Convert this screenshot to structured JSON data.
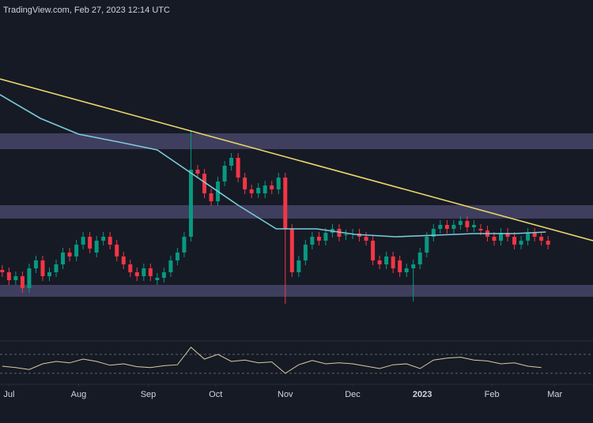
{
  "chart_data": {
    "type": "candlestick",
    "title": "TradingView.com, Feb 27, 2023 12:14 UTC",
    "x": [
      1,
      4,
      7,
      10,
      13,
      16,
      19,
      22,
      25,
      28,
      31,
      34,
      37,
      40,
      43,
      46,
      49,
      52,
      55,
      58,
      61,
      64,
      67,
      70,
      73,
      76,
      79,
      82,
      85,
      88,
      91,
      94,
      97,
      100,
      103,
      106,
      109,
      112,
      115,
      118,
      121,
      124,
      127,
      130,
      133,
      136,
      139,
      142,
      145,
      148,
      151,
      154,
      157,
      160,
      163,
      166,
      169,
      172,
      175,
      178,
      181,
      184,
      187,
      190,
      193,
      196,
      199,
      202,
      205,
      208,
      211,
      214,
      217,
      220,
      223,
      226,
      229,
      232,
      235,
      238,
      241,
      244
    ],
    "open": [
      88,
      85,
      75,
      80,
      65,
      90,
      100,
      80,
      85,
      95,
      110,
      105,
      120,
      130,
      110,
      125,
      130,
      120,
      105,
      95,
      85,
      80,
      90,
      75,
      78,
      85,
      100,
      110,
      130,
      215,
      210,
      185,
      175,
      200,
      220,
      230,
      205,
      190,
      185,
      185,
      195,
      190,
      205,
      140,
      85,
      100,
      120,
      130,
      125,
      135,
      140,
      132,
      133,
      134,
      130,
      125,
      100,
      95,
      105,
      100,
      85,
      90,
      95,
      110,
      130,
      140,
      145,
      140,
      145,
      150,
      142,
      140,
      138,
      130,
      125,
      135,
      130,
      120,
      125,
      135,
      130,
      125
    ],
    "high": [
      94,
      91,
      86,
      86,
      96,
      106,
      106,
      91,
      101,
      116,
      116,
      126,
      136,
      136,
      131,
      136,
      136,
      126,
      111,
      101,
      91,
      96,
      96,
      84,
      91,
      106,
      116,
      136,
      265,
      221,
      216,
      191,
      206,
      226,
      236,
      236,
      211,
      196,
      198,
      201,
      201,
      211,
      211,
      146,
      106,
      126,
      136,
      136,
      141,
      146,
      146,
      139,
      140,
      140,
      136,
      131,
      106,
      111,
      111,
      106,
      96,
      101,
      116,
      136,
      146,
      151,
      151,
      151,
      156,
      156,
      151,
      146,
      144,
      136,
      141,
      141,
      136,
      131,
      141,
      141,
      136,
      131
    ],
    "low": [
      79,
      69,
      69,
      59,
      59,
      84,
      74,
      74,
      79,
      89,
      99,
      99,
      114,
      109,
      104,
      119,
      114,
      99,
      89,
      79,
      74,
      74,
      74,
      69,
      72,
      79,
      94,
      104,
      124,
      204,
      179,
      169,
      169,
      194,
      214,
      199,
      184,
      179,
      179,
      179,
      184,
      184,
      45,
      79,
      79,
      94,
      114,
      119,
      119,
      129,
      124,
      126,
      127,
      124,
      119,
      94,
      89,
      89,
      84,
      79,
      79,
      48,
      89,
      104,
      124,
      134,
      134,
      134,
      139,
      136,
      136,
      132,
      124,
      119,
      119,
      124,
      114,
      114,
      119,
      124,
      119,
      114
    ],
    "close": [
      85,
      75,
      80,
      65,
      90,
      100,
      80,
      85,
      95,
      110,
      105,
      120,
      130,
      115,
      125,
      130,
      120,
      105,
      95,
      85,
      80,
      90,
      80,
      78,
      85,
      100,
      110,
      130,
      215,
      210,
      185,
      175,
      200,
      220,
      230,
      205,
      190,
      185,
      192,
      195,
      190,
      205,
      140,
      85,
      100,
      120,
      130,
      125,
      135,
      140,
      130,
      133,
      134,
      130,
      125,
      100,
      95,
      105,
      90,
      85,
      90,
      95,
      110,
      130,
      140,
      145,
      140,
      145,
      150,
      142,
      145,
      138,
      130,
      125,
      135,
      130,
      120,
      125,
      135,
      130,
      125,
      120
    ],
    "xlim": [
      0,
      264
    ],
    "ylim": [
      0,
      430
    ],
    "xticks": [
      {
        "value": 4,
        "label": "Jul"
      },
      {
        "value": 35,
        "label": "Aug"
      },
      {
        "value": 66,
        "label": "Sep"
      },
      {
        "value": 96,
        "label": "Oct"
      },
      {
        "value": 127,
        "label": "Nov"
      },
      {
        "value": 157,
        "label": "Dec"
      },
      {
        "value": 188,
        "label": "2023"
      },
      {
        "value": 219,
        "label": "Feb"
      },
      {
        "value": 247,
        "label": "Mar"
      }
    ],
    "colors": {
      "up": "#089981",
      "down": "#f23645"
    },
    "zones": [
      [
        241,
        261
      ],
      [
        153,
        170
      ],
      [
        54,
        69
      ]
    ],
    "zone_color": "#5c5685",
    "trendline": {
      "x": [
        0,
        264
      ],
      "values": [
        330,
        125
      ],
      "color": "#e8d56a"
    },
    "moving_average": {
      "x": [
        0,
        18,
        35,
        53,
        70,
        88,
        106,
        123,
        141,
        158,
        176,
        194,
        211,
        229,
        243
      ],
      "values": [
        310,
        280,
        260,
        250,
        240,
        205,
        170,
        140,
        140,
        133,
        130,
        132,
        134,
        134,
        136
      ],
      "color": "#7ccbdc"
    },
    "rsi": {
      "x": [
        1,
        7,
        13,
        19,
        25,
        31,
        37,
        43,
        49,
        55,
        61,
        67,
        73,
        79,
        85,
        91,
        97,
        103,
        109,
        115,
        121,
        127,
        133,
        139,
        145,
        151,
        157,
        163,
        169,
        175,
        181,
        187,
        193,
        199,
        205,
        211,
        217,
        223,
        229,
        235,
        241
      ],
      "values": [
        45,
        42,
        38,
        50,
        55,
        52,
        60,
        55,
        47,
        50,
        44,
        42,
        46,
        48,
        85,
        60,
        70,
        55,
        58,
        52,
        54,
        30,
        48,
        57,
        50,
        52,
        50,
        45,
        40,
        48,
        50,
        40,
        58,
        62,
        64,
        58,
        56,
        50,
        52,
        45,
        42
      ],
      "ylim": [
        15,
        90
      ],
      "levels": [
        70,
        30
      ],
      "color": "#d9cba3"
    }
  }
}
